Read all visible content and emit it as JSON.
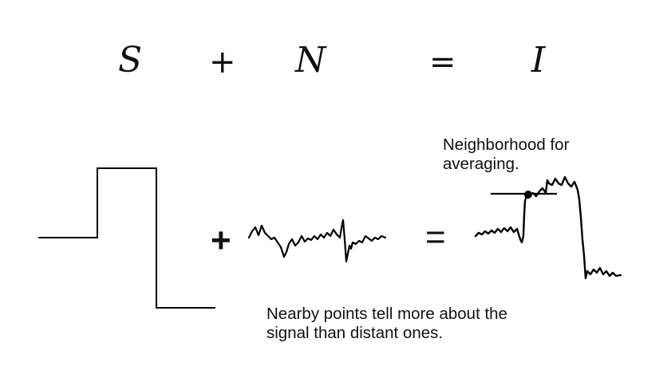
{
  "equation": {
    "signal": "S",
    "plus": "+",
    "noise": "N",
    "equals": "=",
    "image": "I"
  },
  "diagram": {
    "plus_sign": "+",
    "equals_sign": "=",
    "neighborhood_label_line1": "Neighborhood for",
    "neighborhood_label_line2": "averaging.",
    "caption_line1": "Nearby points tell more about the",
    "caption_line2": "signal than distant ones."
  }
}
